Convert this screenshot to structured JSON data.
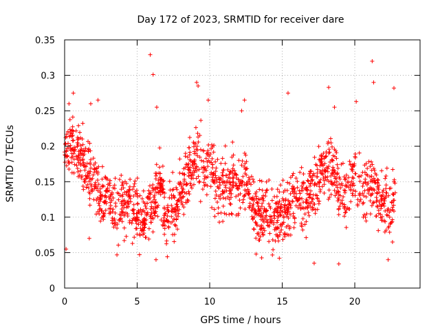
{
  "chart_data": {
    "type": "scatter",
    "title": "Day 172 of 2023, SRMTID for receiver dare",
    "xlabel": "GPS time / hours",
    "ylabel": "SRMTID / TECUs",
    "xlim": [
      0,
      24.5
    ],
    "ylim": [
      0,
      0.35
    ],
    "x_ticks": [
      0,
      5,
      10,
      15,
      20
    ],
    "x_tick_labels": [
      "0",
      "5",
      "10",
      "15",
      "20"
    ],
    "y_ticks": [
      0,
      0.05,
      0.1,
      0.15,
      0.2,
      0.25,
      0.3,
      0.35
    ],
    "y_tick_labels": [
      "0",
      "0.05",
      "0.1",
      "0.15",
      "0.2",
      "0.25",
      "0.3",
      "0.35"
    ],
    "grid": true,
    "marker": "+",
    "series_color": "#ff0000",
    "series": [
      {
        "name": "SRMTID",
        "profile": [
          [
            0.0,
            0.19
          ],
          [
            0.5,
            0.21
          ],
          [
            1.0,
            0.19
          ],
          [
            1.5,
            0.17
          ],
          [
            2.0,
            0.16
          ],
          [
            2.5,
            0.13
          ],
          [
            3.0,
            0.12
          ],
          [
            3.5,
            0.11
          ],
          [
            4.0,
            0.12
          ],
          [
            4.5,
            0.12
          ],
          [
            5.0,
            0.1
          ],
          [
            5.5,
            0.1
          ],
          [
            6.0,
            0.11
          ],
          [
            6.5,
            0.15
          ],
          [
            7.0,
            0.1
          ],
          [
            7.5,
            0.11
          ],
          [
            8.0,
            0.13
          ],
          [
            8.5,
            0.15
          ],
          [
            9.0,
            0.19
          ],
          [
            9.5,
            0.17
          ],
          [
            10.0,
            0.18
          ],
          [
            10.5,
            0.14
          ],
          [
            11.0,
            0.14
          ],
          [
            11.5,
            0.15
          ],
          [
            12.0,
            0.14
          ],
          [
            12.5,
            0.16
          ],
          [
            13.0,
            0.12
          ],
          [
            13.5,
            0.1
          ],
          [
            14.0,
            0.11
          ],
          [
            14.5,
            0.09
          ],
          [
            15.0,
            0.1
          ],
          [
            15.5,
            0.11
          ],
          [
            16.0,
            0.13
          ],
          [
            16.5,
            0.13
          ],
          [
            17.0,
            0.14
          ],
          [
            17.5,
            0.15
          ],
          [
            18.0,
            0.17
          ],
          [
            18.5,
            0.17
          ],
          [
            19.0,
            0.14
          ],
          [
            19.5,
            0.13
          ],
          [
            20.0,
            0.17
          ],
          [
            20.5,
            0.13
          ],
          [
            21.0,
            0.15
          ],
          [
            21.5,
            0.13
          ],
          [
            22.0,
            0.12
          ],
          [
            22.5,
            0.11
          ],
          [
            22.8,
            0.13
          ]
        ],
        "spread": 0.035,
        "n_points": 1700,
        "highlighted_points": [
          [
            0.3,
            0.26
          ],
          [
            0.6,
            0.275
          ],
          [
            1.8,
            0.26
          ],
          [
            2.3,
            0.265
          ],
          [
            5.9,
            0.329
          ],
          [
            6.1,
            0.301
          ],
          [
            6.35,
            0.255
          ],
          [
            6.3,
            0.04
          ],
          [
            9.1,
            0.29
          ],
          [
            9.2,
            0.285
          ],
          [
            9.9,
            0.265
          ],
          [
            12.4,
            0.265
          ],
          [
            12.2,
            0.25
          ],
          [
            15.4,
            0.275
          ],
          [
            18.2,
            0.283
          ],
          [
            18.6,
            0.255
          ],
          [
            20.1,
            0.263
          ],
          [
            21.2,
            0.32
          ],
          [
            21.3,
            0.29
          ],
          [
            22.7,
            0.282
          ],
          [
            0.1,
            0.055
          ],
          [
            1.7,
            0.07
          ],
          [
            13.2,
            0.048
          ],
          [
            14.8,
            0.042
          ],
          [
            17.2,
            0.035
          ],
          [
            18.9,
            0.034
          ],
          [
            22.3,
            0.04
          ],
          [
            22.6,
            0.065
          ]
        ]
      }
    ]
  }
}
